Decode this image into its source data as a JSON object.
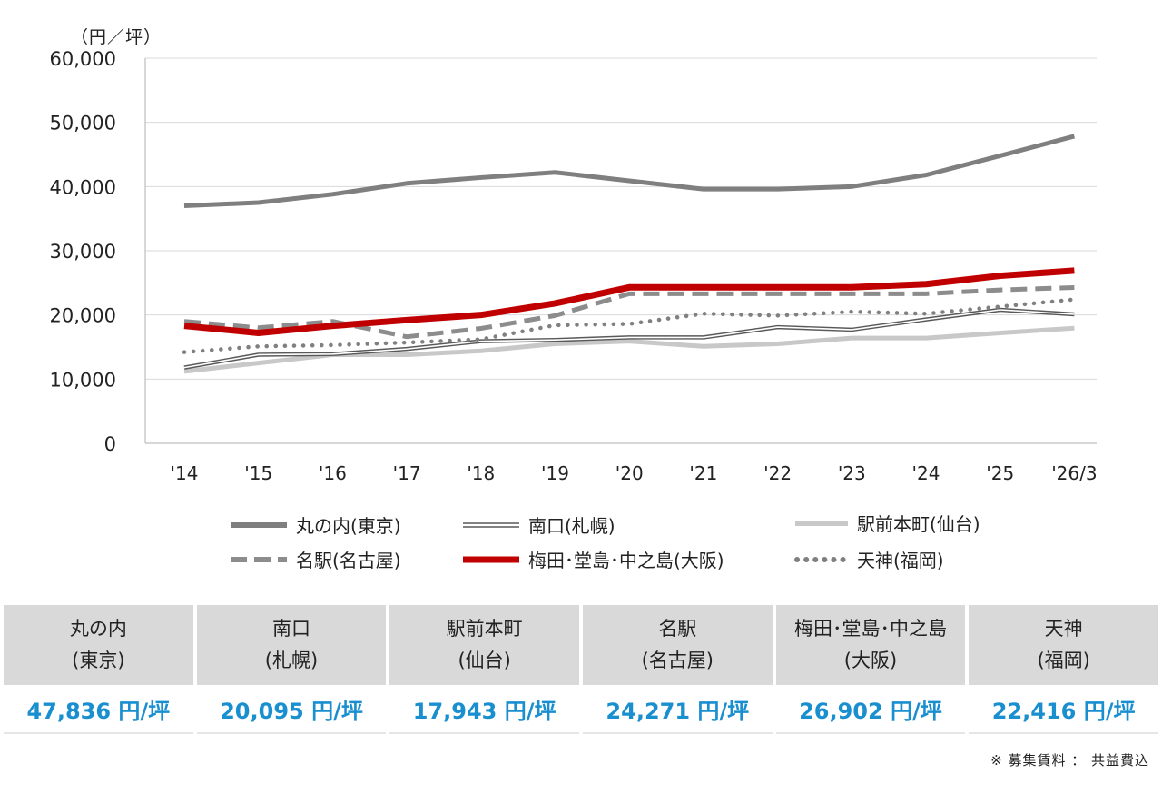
{
  "unit_label": "（円／坪）",
  "chart_data": {
    "type": "line",
    "categories": [
      "'14",
      "'15",
      "'16",
      "'17",
      "'18",
      "'19",
      "'20",
      "'21",
      "'22",
      "'23",
      "'24",
      "'25",
      "'26/3"
    ],
    "ylim": [
      0,
      60000
    ],
    "yticks": [
      0,
      10000,
      20000,
      30000,
      40000,
      50000,
      60000
    ],
    "ytick_labels": [
      "0",
      "10,000",
      "20,000",
      "30,000",
      "40,000",
      "50,000",
      "60,000"
    ],
    "grid": "horizontal",
    "legend_placement": "bottom",
    "series": [
      {
        "name": "丸の内(東京)",
        "style": "solid-thick",
        "color": "#7f7f7f",
        "values": [
          37000,
          37500,
          38800,
          40500,
          41400,
          42200,
          40900,
          39600,
          39600,
          40000,
          41800,
          44800,
          47836
        ]
      },
      {
        "name": "南口(札幌)",
        "style": "double-line",
        "color": "#595959",
        "values": [
          11800,
          13800,
          13900,
          14700,
          15900,
          16100,
          16500,
          16500,
          18100,
          17700,
          19300,
          20800,
          20095
        ]
      },
      {
        "name": "駅前本町(仙台)",
        "style": "solid-light",
        "color": "#c8c8c8",
        "values": [
          11200,
          12500,
          13800,
          13800,
          14400,
          15500,
          15900,
          15100,
          15500,
          16400,
          16400,
          17200,
          17943
        ]
      },
      {
        "name": "名駅(名古屋)",
        "style": "dashed",
        "color": "#8c8c8c",
        "values": [
          19000,
          18000,
          19000,
          16600,
          17900,
          19900,
          23300,
          23300,
          23300,
          23300,
          23300,
          23900,
          24271
        ]
      },
      {
        "name": "梅田･堂島･中之島(大阪)",
        "style": "solid-red",
        "color": "#c00000",
        "values": [
          18300,
          17200,
          18300,
          19200,
          20000,
          21800,
          24300,
          24300,
          24300,
          24300,
          24800,
          26100,
          26902
        ]
      },
      {
        "name": "天神(福岡)",
        "style": "dotted",
        "color": "#808080",
        "values": [
          14200,
          15100,
          15300,
          15700,
          16200,
          18400,
          18600,
          20200,
          19900,
          20500,
          20200,
          21300,
          22416
        ]
      }
    ]
  },
  "legend": [
    {
      "label": "丸の内(東京)"
    },
    {
      "label": "南口(札幌)"
    },
    {
      "label": "駅前本町(仙台)"
    },
    {
      "label": "名駅(名古屋)"
    },
    {
      "label": "梅田･堂島･中之島(大阪)"
    },
    {
      "label": "天神(福岡)"
    }
  ],
  "summary": {
    "headers": [
      {
        "line1": "丸の内",
        "line2": "(東京)"
      },
      {
        "line1": "南口",
        "line2": "(札幌)"
      },
      {
        "line1": "駅前本町",
        "line2": "(仙台)"
      },
      {
        "line1": "名駅",
        "line2": "(名古屋)"
      },
      {
        "line1": "梅田･堂島･中之島",
        "line2": "(大阪)"
      },
      {
        "line1": "天神",
        "line2": "(福岡)"
      }
    ],
    "values": [
      "47,836 円/坪",
      "20,095 円/坪",
      "17,943 円/坪",
      "24,271 円/坪",
      "26,902 円/坪",
      "22,416 円/坪"
    ],
    "value_color": "#1a8fd0"
  },
  "note": "※  募集賃料 ： 共益費込"
}
